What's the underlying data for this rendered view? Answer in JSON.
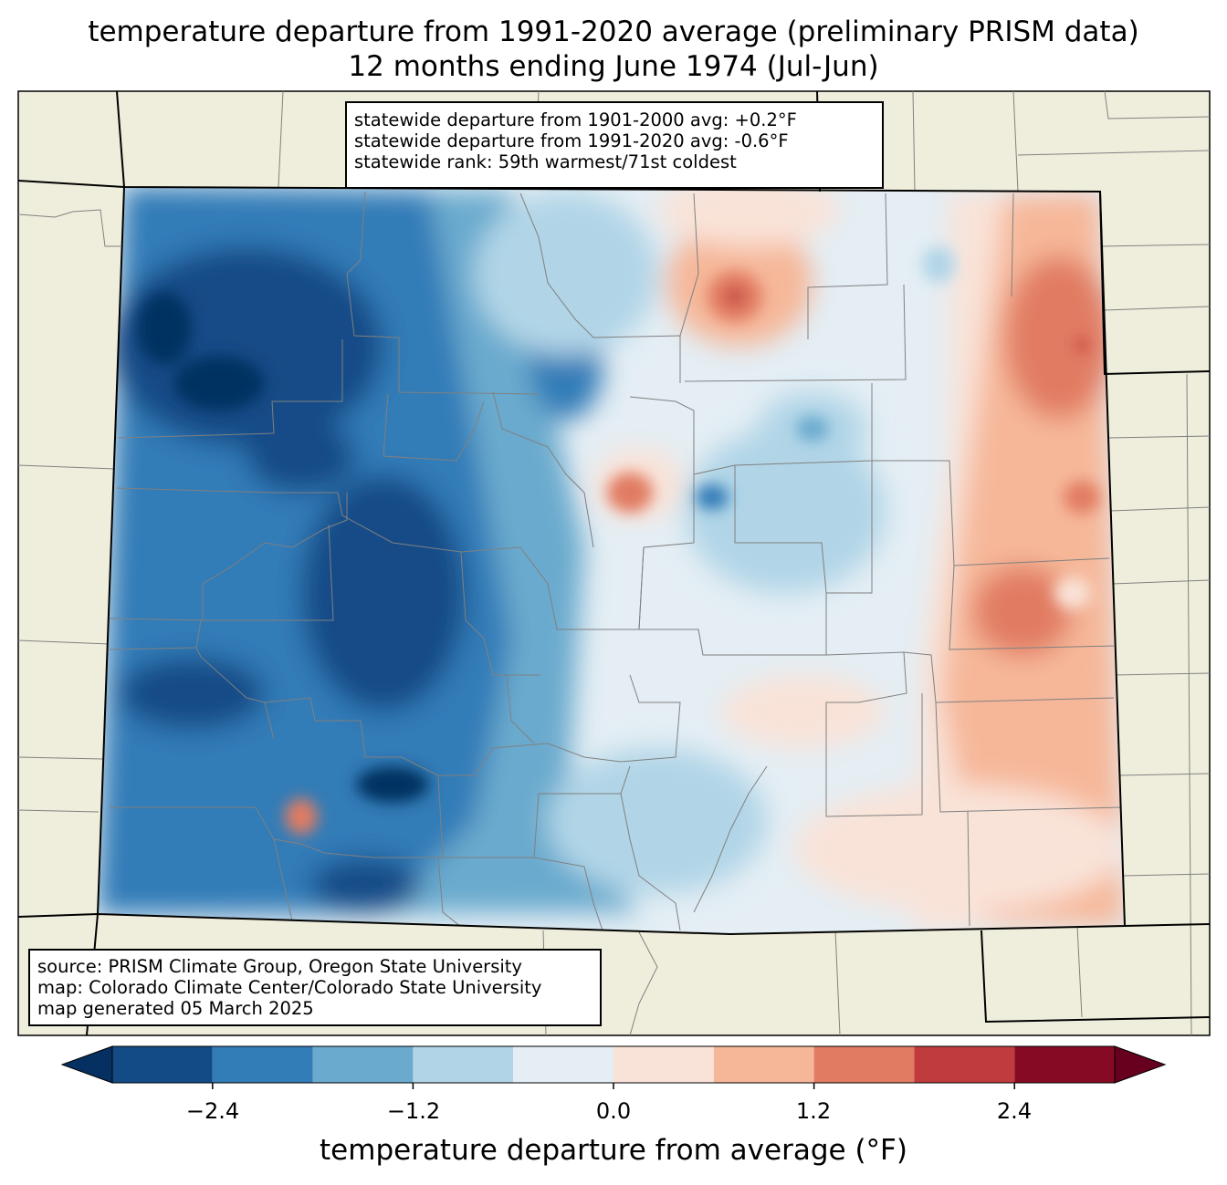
{
  "title_line1": "temperature departure from 1991-2020 average (preliminary PRISM data)",
  "title_line2": "12 months ending June 1974 (Jul-Jun)",
  "stats": [
    "statewide departure from 1901-2000 avg: +0.2°F",
    "statewide departure from 1991-2020 avg: -0.6°F",
    "statewide rank: 59th warmest/71st coldest"
  ],
  "credits": [
    "source: PRISM Climate Group, Oregon State University",
    "map: Colorado Climate Center/Colorado State University",
    "map generated 05 March 2025"
  ],
  "colorbar": {
    "label": "temperature departure from average (°F)",
    "ticks": [
      "−2.4",
      "−1.2",
      "0.0",
      "1.2",
      "2.4"
    ],
    "bin_edges": [
      -3.0,
      -2.4,
      -1.8,
      -1.2,
      -0.6,
      0.0,
      0.6,
      1.2,
      1.8,
      2.4,
      3.0
    ],
    "colors": [
      "#053061",
      "#134b87",
      "#327cb7",
      "#6aaace",
      "#b1d5e7",
      "#e4eef4",
      "#f9e3d8",
      "#f6b799",
      "#e17b62",
      "#c03b3d",
      "#870a24",
      "#67001f"
    ],
    "extend": "both"
  },
  "background_color": "#efeedc",
  "county_line_color": "#808080"
}
